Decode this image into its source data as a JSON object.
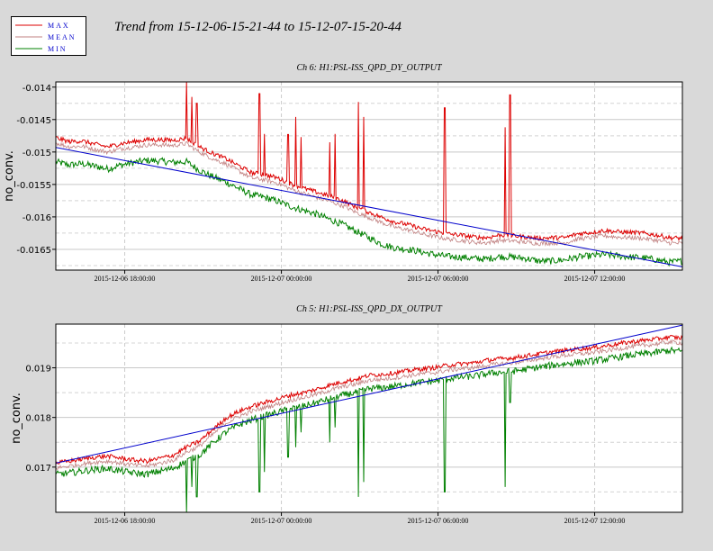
{
  "title": "Trend from 15-12-06-15-21-44 to 15-12-07-15-20-44",
  "legend": {
    "entries": [
      {
        "label": "MAX",
        "color": "#dd0000"
      },
      {
        "label": "MEAN",
        "color": "#c08080"
      },
      {
        "label": "MIN",
        "color": "#008000"
      }
    ],
    "label_color": "#0000cc"
  },
  "fit_color": "#0000cc",
  "chart_data": [
    {
      "type": "line",
      "title": "Ch 6: H1:PSL-ISS_QPD_DY_OUTPUT",
      "ylabel": "no_conv.",
      "ylim": [
        -0.01682,
        -0.01392
      ],
      "yticks": [
        "-0.014",
        "-0.0145",
        "-0.015",
        "-0.0155",
        "-0.016",
        "-0.0165"
      ],
      "ytick_values": [
        -0.014,
        -0.0145,
        -0.015,
        -0.0155,
        -0.016,
        -0.0165
      ],
      "xlim_hours": [
        0,
        24
      ],
      "xticks": [
        "2015-12-06 18:00:00",
        "2015-12-07 00:00:00",
        "2015-12-07 06:00:00",
        "2015-12-07 12:00:00"
      ],
      "xtick_hours": [
        2.64,
        8.64,
        14.64,
        20.64
      ],
      "fit_line": [
        [
          0,
          -0.01493
        ],
        [
          24,
          -0.01677
        ]
      ],
      "series": [
        {
          "name": "MAX",
          "x": [
            0,
            0.5,
            1,
            1.5,
            2,
            2.5,
            3,
            3.5,
            4,
            4.5,
            5,
            5.5,
            6,
            6.5,
            7,
            7.5,
            8,
            8.5,
            9,
            9.5,
            10,
            10.5,
            11,
            11.5,
            12,
            12.5,
            13,
            13.5,
            14,
            14.5,
            15,
            15.5,
            16,
            16.5,
            17,
            17.5,
            18,
            18.5,
            19,
            19.5,
            20,
            20.5,
            21,
            21.5,
            22,
            22.5,
            23,
            23.5,
            24
          ],
          "y": [
            -0.01478,
            -0.01484,
            -0.01483,
            -0.01488,
            -0.01492,
            -0.01487,
            -0.01484,
            -0.01481,
            -0.01481,
            -0.01482,
            -0.01479,
            -0.01492,
            -0.01502,
            -0.0151,
            -0.01521,
            -0.01532,
            -0.01535,
            -0.0154,
            -0.01549,
            -0.01556,
            -0.01562,
            -0.01568,
            -0.01575,
            -0.01585,
            -0.01593,
            -0.01601,
            -0.01608,
            -0.01612,
            -0.01618,
            -0.01622,
            -0.01626,
            -0.01628,
            -0.01631,
            -0.01632,
            -0.01628,
            -0.01629,
            -0.01631,
            -0.01633,
            -0.01632,
            -0.01632,
            -0.01626,
            -0.01624,
            -0.01621,
            -0.01623,
            -0.01624,
            -0.01625,
            -0.01628,
            -0.01632,
            -0.01633
          ],
          "spikes": [
            [
              5.0,
              -0.01392
            ],
            [
              5.2,
              -0.01415
            ],
            [
              5.4,
              -0.01425
            ],
            [
              7.8,
              -0.0141
            ],
            [
              8.0,
              -0.01472
            ],
            [
              8.9,
              -0.01473
            ],
            [
              9.2,
              -0.01446
            ],
            [
              9.4,
              -0.01477
            ],
            [
              10.5,
              -0.01485
            ],
            [
              10.7,
              -0.01472
            ],
            [
              11.6,
              -0.01423
            ],
            [
              11.8,
              -0.01446
            ],
            [
              14.9,
              -0.01432
            ],
            [
              17.2,
              -0.01462
            ],
            [
              17.4,
              -0.01412
            ]
          ]
        },
        {
          "name": "MEAN",
          "x": [
            0,
            0.5,
            1,
            1.5,
            2,
            2.5,
            3,
            3.5,
            4,
            4.5,
            5,
            5.5,
            6,
            6.5,
            7,
            7.5,
            8,
            8.5,
            9,
            9.5,
            10,
            10.5,
            11,
            11.5,
            12,
            12.5,
            13,
            13.5,
            14,
            14.5,
            15,
            15.5,
            16,
            16.5,
            17,
            17.5,
            18,
            18.5,
            19,
            19.5,
            20,
            20.5,
            21,
            21.5,
            22,
            22.5,
            23,
            23.5,
            24
          ],
          "y": [
            -0.01486,
            -0.01492,
            -0.01491,
            -0.01496,
            -0.015,
            -0.01495,
            -0.01492,
            -0.01489,
            -0.01489,
            -0.0149,
            -0.01487,
            -0.015,
            -0.0151,
            -0.01518,
            -0.01529,
            -0.0154,
            -0.01543,
            -0.01548,
            -0.01557,
            -0.01564,
            -0.0157,
            -0.01576,
            -0.01583,
            -0.01593,
            -0.01601,
            -0.01609,
            -0.01616,
            -0.0162,
            -0.01626,
            -0.0163,
            -0.01634,
            -0.01636,
            -0.01639,
            -0.0164,
            -0.01636,
            -0.01637,
            -0.01639,
            -0.01641,
            -0.0164,
            -0.0164,
            -0.01634,
            -0.01632,
            -0.01629,
            -0.01631,
            -0.01632,
            -0.01633,
            -0.01636,
            -0.0164,
            -0.01641
          ]
        },
        {
          "name": "MIN",
          "x": [
            0,
            0.5,
            1,
            1.5,
            2,
            2.5,
            3,
            3.5,
            4,
            4.5,
            5,
            5.5,
            6,
            6.5,
            7,
            7.5,
            8,
            8.5,
            9,
            9.5,
            10,
            10.5,
            11,
            11.5,
            12,
            12.5,
            13,
            13.5,
            14,
            14.5,
            15,
            15.5,
            16,
            16.5,
            17,
            17.5,
            18,
            18.5,
            19,
            19.5,
            20,
            20.5,
            21,
            21.5,
            22,
            22.5,
            23,
            23.5,
            24
          ],
          "y": [
            -0.01515,
            -0.0152,
            -0.01518,
            -0.01522,
            -0.01526,
            -0.0152,
            -0.01516,
            -0.01513,
            -0.01514,
            -0.01516,
            -0.01515,
            -0.01528,
            -0.01538,
            -0.01546,
            -0.01556,
            -0.01566,
            -0.0157,
            -0.01576,
            -0.01584,
            -0.0159,
            -0.01596,
            -0.01604,
            -0.01612,
            -0.01622,
            -0.01632,
            -0.01642,
            -0.01648,
            -0.0165,
            -0.01654,
            -0.01658,
            -0.01661,
            -0.01662,
            -0.01664,
            -0.01665,
            -0.01661,
            -0.01662,
            -0.01664,
            -0.01668,
            -0.01668,
            -0.01666,
            -0.01662,
            -0.0166,
            -0.01658,
            -0.0166,
            -0.01662,
            -0.01663,
            -0.01666,
            -0.0167,
            -0.01668
          ]
        }
      ]
    },
    {
      "type": "line",
      "title": "Ch 5: H1:PSL-ISS_QPD_DX_OUTPUT",
      "ylabel": "no_conv.",
      "ylim": [
        0.01609,
        0.01988
      ],
      "yticks": [
        "0.017",
        "0.018",
        "0.019"
      ],
      "ytick_values": [
        0.017,
        0.018,
        0.019
      ],
      "xlim_hours": [
        0,
        24
      ],
      "xticks": [
        "2015-12-06 18:00:00",
        "2015-12-07 00:00:00",
        "2015-12-07 06:00:00",
        "2015-12-07 12:00:00"
      ],
      "xtick_hours": [
        2.64,
        8.64,
        14.64,
        20.64
      ],
      "fit_line": [
        [
          0,
          0.01708
        ],
        [
          24,
          0.01986
        ]
      ],
      "series": [
        {
          "name": "MAX",
          "x": [
            0,
            0.5,
            1,
            1.5,
            2,
            2.5,
            3,
            3.5,
            4,
            4.5,
            5,
            5.5,
            6,
            6.5,
            7,
            7.5,
            8,
            8.5,
            9,
            9.5,
            10,
            10.5,
            11,
            11.5,
            12,
            12.5,
            13,
            13.5,
            14,
            14.5,
            15,
            15.5,
            16,
            16.5,
            17,
            17.5,
            18,
            18.5,
            19,
            19.5,
            20,
            20.5,
            21,
            21.5,
            22,
            22.5,
            23,
            23.5,
            24
          ],
          "y": [
            0.01708,
            0.01712,
            0.01716,
            0.0172,
            0.01722,
            0.01718,
            0.01714,
            0.01712,
            0.01718,
            0.01724,
            0.0174,
            0.01752,
            0.01775,
            0.01798,
            0.01812,
            0.01822,
            0.0183,
            0.01837,
            0.01845,
            0.0185,
            0.01857,
            0.01865,
            0.01872,
            0.01877,
            0.01885,
            0.01887,
            0.0189,
            0.01894,
            0.01898,
            0.019,
            0.01905,
            0.01908,
            0.0191,
            0.01915,
            0.01918,
            0.0192,
            0.01924,
            0.01928,
            0.01932,
            0.01935,
            0.01938,
            0.0194,
            0.01944,
            0.01948,
            0.01952,
            0.01955,
            0.01958,
            0.01962,
            0.0196
          ]
        },
        {
          "name": "MEAN",
          "x": [
            0,
            0.5,
            1,
            1.5,
            2,
            2.5,
            3,
            3.5,
            4,
            4.5,
            5,
            5.5,
            6,
            6.5,
            7,
            7.5,
            8,
            8.5,
            9,
            9.5,
            10,
            10.5,
            11,
            11.5,
            12,
            12.5,
            13,
            13.5,
            14,
            14.5,
            15,
            15.5,
            16,
            16.5,
            17,
            17.5,
            18,
            18.5,
            19,
            19.5,
            20,
            20.5,
            21,
            21.5,
            22,
            22.5,
            23,
            23.5,
            24
          ],
          "y": [
            0.01698,
            0.01702,
            0.01706,
            0.0171,
            0.01712,
            0.01708,
            0.01704,
            0.01702,
            0.01708,
            0.01714,
            0.0173,
            0.01742,
            0.01765,
            0.01788,
            0.01802,
            0.01812,
            0.0182,
            0.01827,
            0.01835,
            0.0184,
            0.01847,
            0.01855,
            0.01862,
            0.01867,
            0.01875,
            0.01877,
            0.0188,
            0.01884,
            0.01888,
            0.0189,
            0.01895,
            0.01898,
            0.019,
            0.01905,
            0.01908,
            0.0191,
            0.01914,
            0.01918,
            0.01922,
            0.01925,
            0.01928,
            0.0193,
            0.01934,
            0.01938,
            0.01942,
            0.01945,
            0.01948,
            0.01952,
            0.0195
          ]
        },
        {
          "name": "MIN",
          "x": [
            0,
            0.5,
            1,
            1.5,
            2,
            2.5,
            3,
            3.5,
            4,
            4.5,
            5,
            5.5,
            6,
            6.5,
            7,
            7.5,
            8,
            8.5,
            9,
            9.5,
            10,
            10.5,
            11,
            11.5,
            12,
            12.5,
            13,
            13.5,
            14,
            14.5,
            15,
            15.5,
            16,
            16.5,
            17,
            17.5,
            18,
            18.5,
            19,
            19.5,
            20,
            20.5,
            21,
            21.5,
            22,
            22.5,
            23,
            23.5,
            24
          ],
          "y": [
            0.01685,
            0.01688,
            0.01692,
            0.01695,
            0.01697,
            0.01692,
            0.01688,
            0.01686,
            0.01692,
            0.01698,
            0.01712,
            0.01724,
            0.01748,
            0.0177,
            0.01785,
            0.01795,
            0.01803,
            0.0181,
            0.01818,
            0.01823,
            0.0183,
            0.01838,
            0.01845,
            0.0185,
            0.01858,
            0.0186,
            0.01863,
            0.01867,
            0.01871,
            0.01873,
            0.01878,
            0.01881,
            0.01883,
            0.01888,
            0.01891,
            0.01893,
            0.01897,
            0.01901,
            0.01905,
            0.01908,
            0.01911,
            0.01913,
            0.01917,
            0.01921,
            0.01925,
            0.01928,
            0.01931,
            0.01935,
            0.01933
          ],
          "spikes": [
            [
              5.0,
              0.01609
            ],
            [
              5.2,
              0.0166
            ],
            [
              5.4,
              0.0164
            ],
            [
              7.8,
              0.0165
            ],
            [
              8.0,
              0.0169
            ],
            [
              8.9,
              0.0172
            ],
            [
              9.2,
              0.0174
            ],
            [
              9.4,
              0.0177
            ],
            [
              10.5,
              0.0175
            ],
            [
              10.7,
              0.0178
            ],
            [
              11.6,
              0.0164
            ],
            [
              11.8,
              0.0167
            ],
            [
              14.9,
              0.0165
            ],
            [
              17.2,
              0.0166
            ],
            [
              17.4,
              0.0183
            ]
          ]
        }
      ]
    }
  ]
}
